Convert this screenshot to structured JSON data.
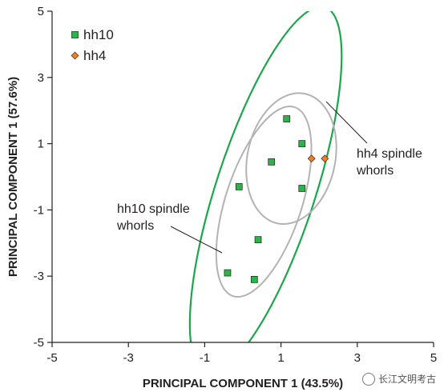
{
  "chart_data": {
    "type": "scatter",
    "xlabel": "PRINCIPAL COMPONENT 1 (43.5%)",
    "ylabel": "PRINCIPAL COMPONENT 1 (57.6%)",
    "xlim": [
      -5,
      5
    ],
    "ylim": [
      -5,
      5
    ],
    "xticks": [
      "-5",
      "-3",
      "-1",
      "1",
      "3",
      "5"
    ],
    "yticks": [
      "5",
      "3",
      "1",
      "-1",
      "-3",
      "-5"
    ],
    "grid": false,
    "legend_position": "top-left",
    "series": [
      {
        "name": "hh10",
        "marker": "square",
        "color": "#2db34a",
        "points": [
          {
            "x": 1.15,
            "y": 1.75
          },
          {
            "x": 1.55,
            "y": 1.0
          },
          {
            "x": 0.75,
            "y": 0.45
          },
          {
            "x": -0.1,
            "y": -0.3
          },
          {
            "x": 1.55,
            "y": -0.35
          },
          {
            "x": 0.4,
            "y": -1.9
          },
          {
            "x": -0.4,
            "y": -2.9
          },
          {
            "x": 0.3,
            "y": -3.1
          }
        ]
      },
      {
        "name": "hh4",
        "marker": "diamond",
        "color": "#f47b20",
        "points": [
          {
            "x": 1.8,
            "y": 0.55
          },
          {
            "x": 2.15,
            "y": 0.55
          }
        ]
      }
    ],
    "ellipses": [
      {
        "group": "hh10",
        "kind": "inner",
        "color": "#b3b3b3",
        "cx": 0.55,
        "cy": -0.75,
        "rx": 1.0,
        "ry": 3.0,
        "angle_deg": 18
      },
      {
        "group": "hh10",
        "kind": "outer",
        "color": "#1aa64a",
        "cx": 0.6,
        "cy": -0.4,
        "rx": 1.3,
        "ry": 5.8,
        "angle_deg": 18
      },
      {
        "group": "hh4",
        "kind": "inner",
        "color": "#b3b3b3",
        "cx": 1.27,
        "cy": 0.55,
        "rx": 1.15,
        "ry": 2.0,
        "angle_deg": 12
      }
    ],
    "annotations": [
      {
        "lines": [
          "hh4 spindle",
          "whorls"
        ]
      },
      {
        "lines": [
          "hh10 spindle",
          "whorls"
        ]
      }
    ],
    "colors": {
      "axis": "#231f20",
      "hh10": "#2db34a",
      "hh4": "#f47b20",
      "ellipse_inner": "#b3b3b3",
      "ellipse_outer": "#1aa64a"
    }
  },
  "watermark": {
    "text": "长江文明考古",
    "icon": "wechat-icon"
  }
}
